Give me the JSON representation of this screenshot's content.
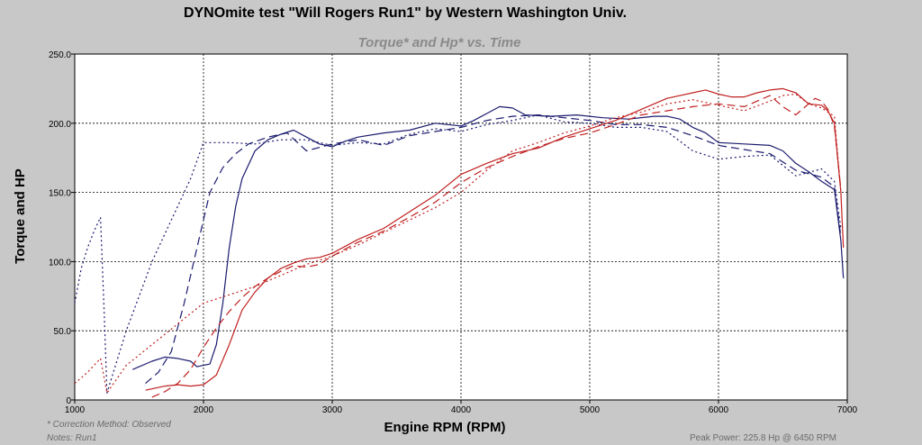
{
  "header": {
    "title": "DYNOmite test \"Will Rogers Run1\" by Western Washington Univ.",
    "subtitle": "Torque* and Hp* vs. Time"
  },
  "footer": {
    "correction": "* Correction Method: Observed",
    "notes": "Notes: Run1",
    "peak_power": "Peak Power: 225.8 Hp @ 6450 RPM"
  },
  "colors": {
    "torque": "#1a1a6e",
    "hp": "#c02020",
    "plot_bg": "#ffffff",
    "page_bg": "#c8c8c8",
    "grid": "#000000"
  },
  "chart_data": {
    "type": "line",
    "title": "Torque* and Hp* vs. Time",
    "xlabel": "Engine RPM (RPM)",
    "ylabel": "Torque and HP",
    "xlim": [
      1000,
      7000
    ],
    "ylim": [
      0,
      250
    ],
    "x_ticks": [
      "1000",
      "2000",
      "3000",
      "4000",
      "5000",
      "6000",
      "7000"
    ],
    "y_ticks": [
      "0",
      "50.0",
      "100.0",
      "150.0",
      "200.0",
      "250.0"
    ],
    "grid": true,
    "series": [
      {
        "quantity": "torque",
        "style": "solid",
        "color": "#1a1a6e",
        "points": [
          [
            1450,
            22
          ],
          [
            1600,
            28
          ],
          [
            1700,
            31
          ],
          [
            1800,
            30
          ],
          [
            1900,
            28
          ],
          [
            1950,
            24
          ],
          [
            2050,
            26
          ],
          [
            2100,
            40
          ],
          [
            2150,
            70
          ],
          [
            2200,
            110
          ],
          [
            2250,
            140
          ],
          [
            2300,
            160
          ],
          [
            2400,
            180
          ],
          [
            2500,
            188
          ],
          [
            2600,
            192
          ],
          [
            2700,
            195
          ],
          [
            2800,
            190
          ],
          [
            2900,
            185
          ],
          [
            3000,
            183
          ],
          [
            3100,
            187
          ],
          [
            3200,
            190
          ],
          [
            3400,
            193
          ],
          [
            3600,
            195
          ],
          [
            3800,
            200
          ],
          [
            4000,
            198
          ],
          [
            4100,
            202
          ],
          [
            4200,
            207
          ],
          [
            4300,
            212
          ],
          [
            4400,
            211
          ],
          [
            4500,
            206
          ],
          [
            4700,
            205
          ],
          [
            4900,
            206
          ],
          [
            5100,
            204
          ],
          [
            5300,
            203
          ],
          [
            5500,
            205
          ],
          [
            5600,
            205
          ],
          [
            5700,
            203
          ],
          [
            5800,
            197
          ],
          [
            5900,
            193
          ],
          [
            6000,
            186
          ],
          [
            6200,
            185
          ],
          [
            6400,
            184
          ],
          [
            6500,
            180
          ],
          [
            6600,
            171
          ],
          [
            6700,
            165
          ],
          [
            6800,
            158
          ],
          [
            6900,
            152
          ],
          [
            6950,
            115
          ],
          [
            6970,
            88
          ]
        ]
      },
      {
        "quantity": "torque",
        "style": "dashed",
        "color": "#1a1a6e",
        "points": [
          [
            1550,
            12
          ],
          [
            1650,
            20
          ],
          [
            1750,
            35
          ],
          [
            1850,
            70
          ],
          [
            1950,
            110
          ],
          [
            2050,
            150
          ],
          [
            2150,
            168
          ],
          [
            2250,
            178
          ],
          [
            2350,
            185
          ],
          [
            2500,
            190
          ],
          [
            2650,
            193
          ],
          [
            2800,
            180
          ],
          [
            3000,
            185
          ],
          [
            3200,
            188
          ],
          [
            3400,
            184
          ],
          [
            3600,
            191
          ],
          [
            3800,
            194
          ],
          [
            4000,
            197
          ],
          [
            4200,
            202
          ],
          [
            4400,
            205
          ],
          [
            4600,
            206
          ],
          [
            4800,
            204
          ],
          [
            5000,
            202
          ],
          [
            5200,
            199
          ],
          [
            5400,
            199
          ],
          [
            5600,
            197
          ],
          [
            5800,
            191
          ],
          [
            6000,
            184
          ],
          [
            6200,
            181
          ],
          [
            6400,
            178
          ],
          [
            6600,
            166
          ],
          [
            6800,
            161
          ],
          [
            6900,
            154
          ],
          [
            6950,
            118
          ]
        ]
      },
      {
        "quantity": "torque",
        "style": "dotted",
        "color": "#1a1a6e",
        "points": [
          [
            1000,
            70
          ],
          [
            1050,
            95
          ],
          [
            1100,
            110
          ],
          [
            1150,
            122
          ],
          [
            1200,
            132
          ],
          [
            1230,
            60
          ],
          [
            1250,
            5
          ],
          [
            1400,
            50
          ],
          [
            1600,
            100
          ],
          [
            1800,
            140
          ],
          [
            1900,
            160
          ],
          [
            2000,
            186
          ],
          [
            2200,
            186
          ],
          [
            2400,
            185
          ],
          [
            2600,
            188
          ],
          [
            2800,
            188
          ],
          [
            3000,
            184
          ],
          [
            3200,
            186
          ],
          [
            3400,
            185
          ],
          [
            3600,
            192
          ],
          [
            3800,
            196
          ],
          [
            4000,
            194
          ],
          [
            4200,
            199
          ],
          [
            4400,
            202
          ],
          [
            4600,
            206
          ],
          [
            4800,
            201
          ],
          [
            5000,
            200
          ],
          [
            5200,
            197
          ],
          [
            5400,
            197
          ],
          [
            5600,
            194
          ],
          [
            5800,
            180
          ],
          [
            6000,
            174
          ],
          [
            6200,
            176
          ],
          [
            6400,
            177
          ],
          [
            6600,
            162
          ],
          [
            6800,
            167
          ],
          [
            6900,
            158
          ],
          [
            6950,
            124
          ]
        ]
      },
      {
        "quantity": "hp",
        "style": "solid",
        "color": "#c02020",
        "points": [
          [
            1550,
            7
          ],
          [
            1700,
            10
          ],
          [
            1800,
            11
          ],
          [
            1900,
            10
          ],
          [
            2000,
            11
          ],
          [
            2100,
            18
          ],
          [
            2200,
            40
          ],
          [
            2300,
            65
          ],
          [
            2400,
            78
          ],
          [
            2500,
            88
          ],
          [
            2600,
            95
          ],
          [
            2700,
            99
          ],
          [
            2800,
            102
          ],
          [
            2900,
            103
          ],
          [
            3000,
            106
          ],
          [
            3200,
            116
          ],
          [
            3400,
            124
          ],
          [
            3600,
            136
          ],
          [
            3800,
            148
          ],
          [
            4000,
            163
          ],
          [
            4200,
            171
          ],
          [
            4400,
            178
          ],
          [
            4600,
            182
          ],
          [
            4800,
            190
          ],
          [
            5000,
            196
          ],
          [
            5200,
            202
          ],
          [
            5400,
            210
          ],
          [
            5600,
            218
          ],
          [
            5800,
            222
          ],
          [
            5900,
            224
          ],
          [
            6000,
            221
          ],
          [
            6100,
            219
          ],
          [
            6200,
            219
          ],
          [
            6300,
            222
          ],
          [
            6400,
            224
          ],
          [
            6500,
            225
          ],
          [
            6600,
            222
          ],
          [
            6700,
            214
          ],
          [
            6800,
            213
          ],
          [
            6850,
            209
          ],
          [
            6900,
            200
          ],
          [
            6950,
            150
          ],
          [
            6970,
            110
          ]
        ]
      },
      {
        "quantity": "hp",
        "style": "dashed",
        "color": "#c02020",
        "points": [
          [
            1600,
            2
          ],
          [
            1700,
            6
          ],
          [
            1800,
            12
          ],
          [
            1900,
            22
          ],
          [
            2000,
            38
          ],
          [
            2100,
            52
          ],
          [
            2200,
            64
          ],
          [
            2300,
            74
          ],
          [
            2400,
            82
          ],
          [
            2500,
            88
          ],
          [
            2600,
            93
          ],
          [
            2700,
            97
          ],
          [
            2800,
            96
          ],
          [
            2900,
            98
          ],
          [
            3000,
            104
          ],
          [
            3200,
            114
          ],
          [
            3400,
            122
          ],
          [
            3600,
            132
          ],
          [
            3800,
            143
          ],
          [
            4000,
            157
          ],
          [
            4200,
            168
          ],
          [
            4400,
            176
          ],
          [
            4600,
            183
          ],
          [
            4800,
            189
          ],
          [
            5000,
            193
          ],
          [
            5200,
            199
          ],
          [
            5400,
            206
          ],
          [
            5600,
            209
          ],
          [
            5800,
            212
          ],
          [
            6000,
            214
          ],
          [
            6200,
            212
          ],
          [
            6400,
            220
          ],
          [
            6500,
            212
          ],
          [
            6600,
            206
          ],
          [
            6700,
            214
          ],
          [
            6750,
            218
          ],
          [
            6800,
            216
          ],
          [
            6850,
            210
          ],
          [
            6900,
            198
          ],
          [
            6950,
            152
          ]
        ]
      },
      {
        "quantity": "hp",
        "style": "dotted",
        "color": "#c02020",
        "points": [
          [
            1000,
            12
          ],
          [
            1100,
            20
          ],
          [
            1200,
            30
          ],
          [
            1250,
            5
          ],
          [
            1400,
            25
          ],
          [
            1600,
            40
          ],
          [
            1800,
            55
          ],
          [
            2000,
            70
          ],
          [
            2200,
            76
          ],
          [
            2400,
            82
          ],
          [
            2600,
            90
          ],
          [
            2800,
            98
          ],
          [
            3000,
            104
          ],
          [
            3200,
            112
          ],
          [
            3400,
            121
          ],
          [
            3600,
            130
          ],
          [
            3800,
            139
          ],
          [
            4000,
            150
          ],
          [
            4200,
            166
          ],
          [
            4400,
            180
          ],
          [
            4600,
            186
          ],
          [
            4800,
            193
          ],
          [
            5000,
            198
          ],
          [
            5200,
            204
          ],
          [
            5400,
            208
          ],
          [
            5600,
            214
          ],
          [
            5800,
            217
          ],
          [
            6000,
            213
          ],
          [
            6100,
            211
          ],
          [
            6200,
            209
          ],
          [
            6400,
            216
          ],
          [
            6500,
            220
          ],
          [
            6600,
            221
          ],
          [
            6700,
            214
          ],
          [
            6800,
            211
          ],
          [
            6900,
            205
          ],
          [
            6950,
            150
          ]
        ]
      }
    ]
  }
}
